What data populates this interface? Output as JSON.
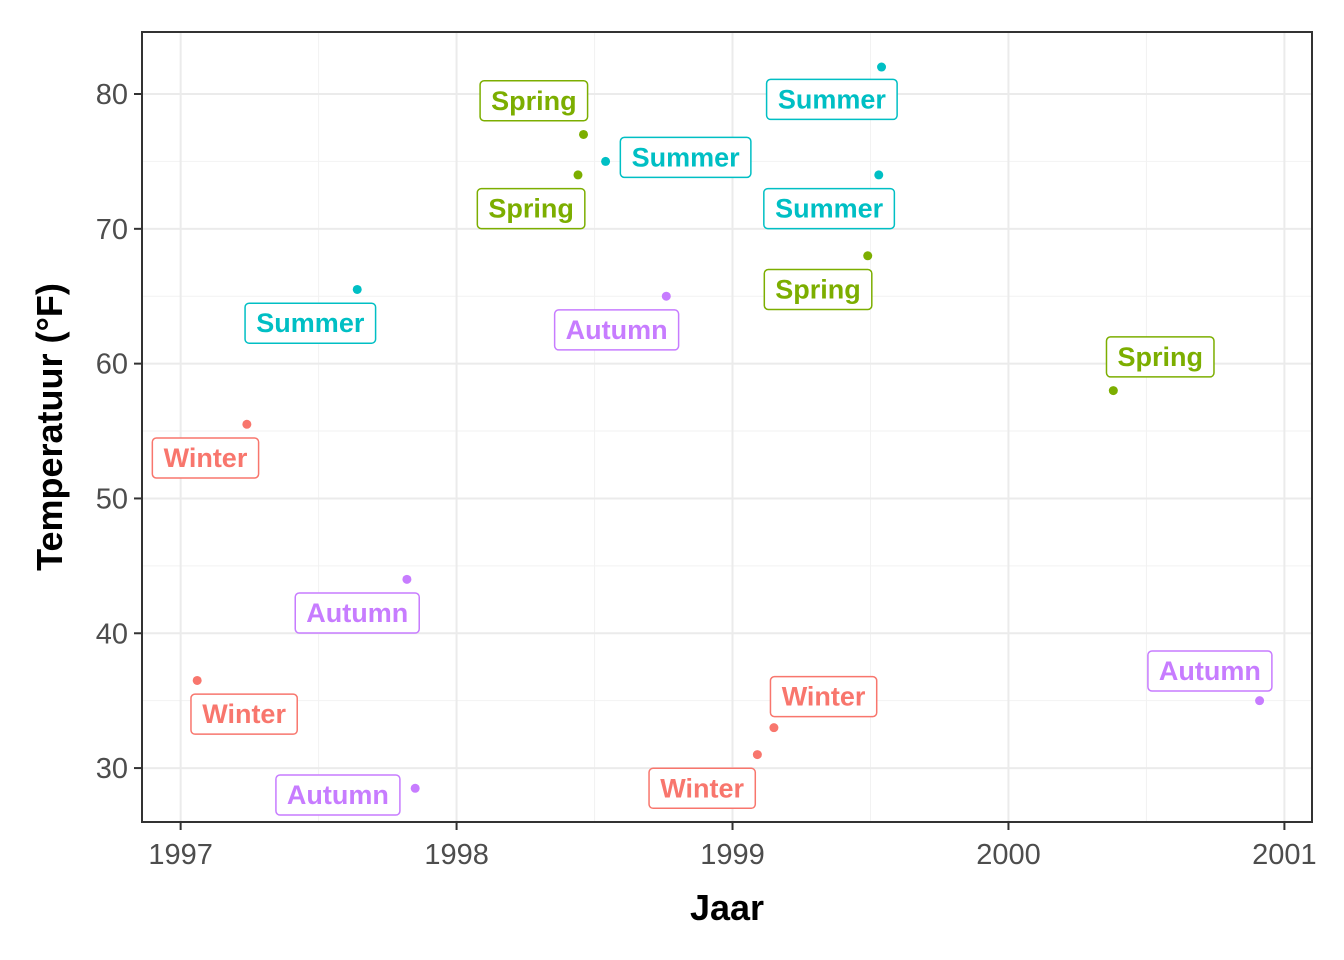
{
  "chart_data": {
    "type": "scatter",
    "xlabel": "Jaar",
    "ylabel": "Temperatuur (°F)",
    "xlim": [
      1996.86,
      2001.1
    ],
    "ylim": [
      26,
      84.6
    ],
    "x_ticks": [
      1997,
      1998,
      1999,
      2000,
      2001
    ],
    "x_tick_labels": [
      "1997",
      "1998",
      "1999",
      "2000",
      "2001"
    ],
    "y_ticks": [
      30,
      40,
      50,
      60,
      70,
      80
    ],
    "y_tick_labels": [
      "30",
      "40",
      "50",
      "60",
      "70",
      "80"
    ],
    "grid": true,
    "legend": "none",
    "colors": {
      "Winter": "#F8766D",
      "Spring": "#7CAE00",
      "Summer": "#00BFC4",
      "Autumn": "#C77CFF"
    },
    "points": [
      {
        "x": 1997.06,
        "y": 36.5,
        "season": "Winter",
        "label": "Winter",
        "lx": 1997.23,
        "ly": 34.0
      },
      {
        "x": 1997.24,
        "y": 55.5,
        "season": "Winter",
        "label": "Winter",
        "lx": 1997.09,
        "ly": 53.0
      },
      {
        "x": 1997.64,
        "y": 65.5,
        "season": "Summer",
        "label": "Summer",
        "lx": 1997.47,
        "ly": 63.0
      },
      {
        "x": 1997.82,
        "y": 44.0,
        "season": "Autumn",
        "label": "Autumn",
        "lx": 1997.64,
        "ly": 41.5
      },
      {
        "x": 1997.85,
        "y": 28.5,
        "season": "Autumn",
        "label": "Autumn",
        "lx": 1997.57,
        "ly": 28.0
      },
      {
        "x": 1998.44,
        "y": 74.0,
        "season": "Spring",
        "label": "Spring",
        "lx": 1998.27,
        "ly": 71.5
      },
      {
        "x": 1998.46,
        "y": 77.0,
        "season": "Spring",
        "label": "Spring",
        "lx": 1998.28,
        "ly": 79.5
      },
      {
        "x": 1998.54,
        "y": 75.0,
        "season": "Summer",
        "label": "Summer",
        "lx": 1998.83,
        "ly": 75.3
      },
      {
        "x": 1998.76,
        "y": 65.0,
        "season": "Autumn",
        "label": "Autumn",
        "lx": 1998.58,
        "ly": 62.5
      },
      {
        "x": 1999.09,
        "y": 31.0,
        "season": "Winter",
        "label": "Winter",
        "lx": 1998.89,
        "ly": 28.5
      },
      {
        "x": 1999.15,
        "y": 33.0,
        "season": "Winter",
        "label": "Winter",
        "lx": 1999.33,
        "ly": 35.3
      },
      {
        "x": 1999.49,
        "y": 68.0,
        "season": "Spring",
        "label": "Spring",
        "lx": 1999.31,
        "ly": 65.5
      },
      {
        "x": 1999.53,
        "y": 74.0,
        "season": "Summer",
        "label": "Summer",
        "lx": 1999.35,
        "ly": 71.5
      },
      {
        "x": 1999.54,
        "y": 82.0,
        "season": "Summer",
        "label": "Summer",
        "lx": 1999.36,
        "ly": 79.6
      },
      {
        "x": 2000.38,
        "y": 58.0,
        "season": "Spring",
        "label": "Spring",
        "lx": 2000.55,
        "ly": 60.5
      },
      {
        "x": 2000.91,
        "y": 35.0,
        "season": "Autumn",
        "label": "Autumn",
        "lx": 2000.73,
        "ly": 37.2
      }
    ]
  }
}
